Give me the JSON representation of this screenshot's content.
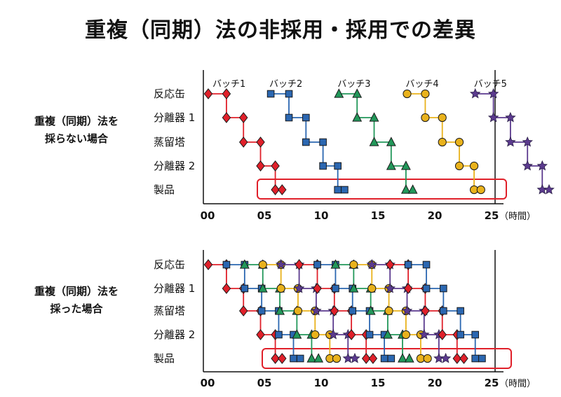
{
  "title": "重複（同期）法の非採用・採用での差異",
  "rows": [
    "反応缶",
    "分離器 1",
    "蒸留塔",
    "分離器 2",
    "製品"
  ],
  "ticks": [
    "00",
    "05",
    "10",
    "15",
    "20",
    "25"
  ],
  "time_unit": "（時間）",
  "batches": [
    {
      "label": "バッチ1",
      "shape": "diamond",
      "color": "#e0202a",
      "start": 0
    },
    {
      "label": "バッチ2",
      "shape": "square",
      "color": "#2b67b1",
      "start": 5
    },
    {
      "label": "バッチ3",
      "shape": "triangle",
      "color": "#22985a",
      "start": 11
    },
    {
      "label": "バッチ4",
      "shape": "circle",
      "color": "#e9b21c",
      "start": 17
    },
    {
      "label": "バッチ5",
      "shape": "star",
      "color": "#5b3a8e",
      "start": 23
    }
  ],
  "panels": [
    {
      "label_lines": [
        "重複（同期）法を",
        "採らない場合"
      ]
    },
    {
      "label_lines": [
        "重複（同期）法を",
        "採った場合"
      ]
    }
  ]
}
